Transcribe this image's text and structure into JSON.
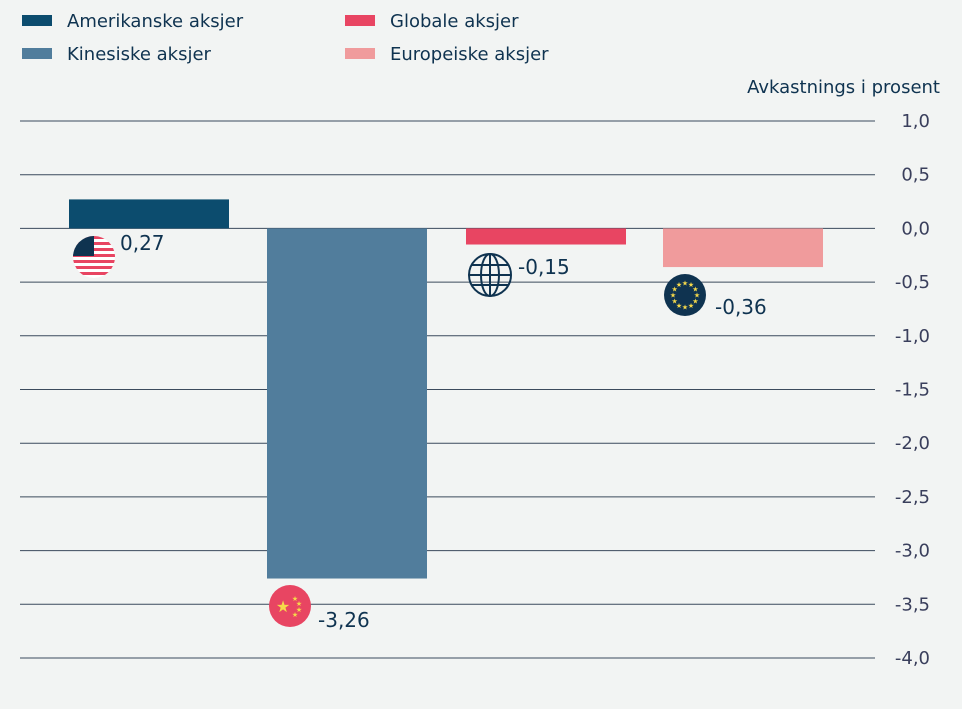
{
  "chart_data": {
    "type": "bar",
    "ylabel": "Avkastnings i prosent",
    "ylim": [
      -4.0,
      1.0
    ],
    "ytick_step": 0.5,
    "grid": true,
    "legend_position": "top-left",
    "decimal_separator": ",",
    "series": [
      {
        "name": "Amerikanske aksjer",
        "value": 0.27,
        "label": "0,27",
        "color": "#0c4c6e",
        "icon": "us-flag-icon"
      },
      {
        "name": "Kinesiske aksjer",
        "value": -3.26,
        "label": "-3,26",
        "color": "#517d9c",
        "icon": "china-flag-icon"
      },
      {
        "name": "Globale aksjer",
        "value": -0.15,
        "label": "-0,15",
        "color": "#e84562",
        "icon": "globe-icon"
      },
      {
        "name": "Europeiske aksjer",
        "value": -0.36,
        "label": "-0,36",
        "color": "#f09b9c",
        "icon": "eu-flag-icon"
      }
    ],
    "ytick_labels": [
      "1,0",
      "0,5",
      "0,0",
      "-0,5",
      "-1,0",
      "-1,5",
      "-2,0",
      "-2,5",
      "-3,0",
      "-3,5",
      "-4,0"
    ]
  }
}
